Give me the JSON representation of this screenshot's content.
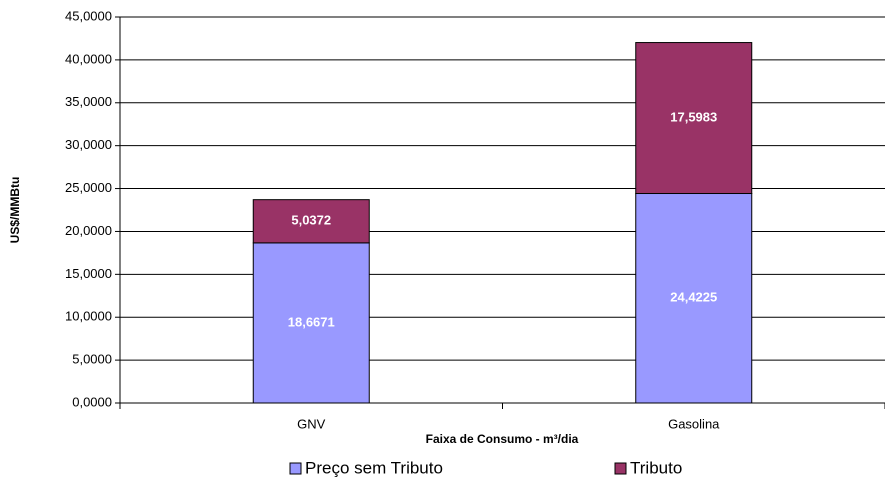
{
  "chart_data": {
    "type": "stacked_bar",
    "y_label": "US$/MMBtu",
    "x_label": "Faixa de Consumo  - m³/dia",
    "categories": [
      "GNV",
      "Gasolina"
    ],
    "series": [
      {
        "name": "Preço sem Tributo",
        "color": "#9999ff",
        "values": [
          18.6671,
          24.4225
        ],
        "value_labels": [
          "18,6671",
          "24,4225"
        ]
      },
      {
        "name": "Tributo",
        "color": "#993366",
        "values": [
          5.0372,
          17.5983
        ],
        "value_labels": [
          "5,0372",
          "17,5983"
        ]
      }
    ],
    "ylim": [
      0,
      45
    ],
    "yticks": [
      {
        "value": 0,
        "label": "0,0000"
      },
      {
        "value": 5,
        "label": "5,0000"
      },
      {
        "value": 10,
        "label": "10,0000"
      },
      {
        "value": 15,
        "label": "15,0000"
      },
      {
        "value": 20,
        "label": "20,0000"
      },
      {
        "value": 25,
        "label": "25,0000"
      },
      {
        "value": 30,
        "label": "30,0000"
      },
      {
        "value": 35,
        "label": "35,0000"
      },
      {
        "value": 40,
        "label": "40,0000"
      },
      {
        "value": 45,
        "label": "45,0000"
      }
    ],
    "grid": true,
    "legend": "bottom"
  }
}
